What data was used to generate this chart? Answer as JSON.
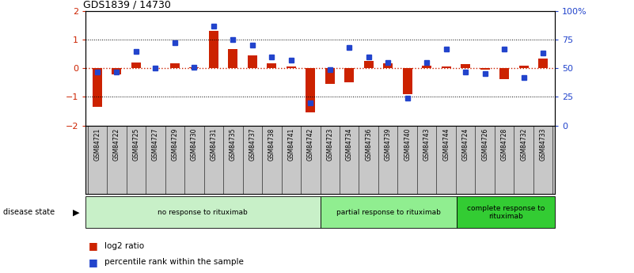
{
  "title": "GDS1839 / 14730",
  "samples": [
    "GSM84721",
    "GSM84722",
    "GSM84725",
    "GSM84727",
    "GSM84729",
    "GSM84730",
    "GSM84731",
    "GSM84735",
    "GSM84737",
    "GSM84738",
    "GSM84741",
    "GSM84742",
    "GSM84723",
    "GSM84734",
    "GSM84736",
    "GSM84739",
    "GSM84740",
    "GSM84743",
    "GSM84744",
    "GSM84724",
    "GSM84726",
    "GSM84728",
    "GSM84732",
    "GSM84733"
  ],
  "log2_ratio": [
    -1.35,
    -0.22,
    0.2,
    0.02,
    0.18,
    0.04,
    1.3,
    0.68,
    0.45,
    0.18,
    0.05,
    -1.55,
    -0.55,
    -0.5,
    0.25,
    0.18,
    -0.9,
    0.1,
    0.06,
    0.15,
    -0.05,
    -0.38,
    0.08,
    0.35
  ],
  "percentile": [
    47,
    47,
    65,
    50,
    72,
    51,
    87,
    75,
    70,
    60,
    57,
    20,
    49,
    68,
    60,
    55,
    24,
    55,
    67,
    47,
    45,
    67,
    42,
    63
  ],
  "groups": [
    {
      "label": "no response to rituximab",
      "start": 0,
      "end": 11,
      "color": "#c8f0c8"
    },
    {
      "label": "partial response to rituximab",
      "start": 12,
      "end": 18,
      "color": "#90ee90"
    },
    {
      "label": "complete response to\nrituximab",
      "start": 19,
      "end": 23,
      "color": "#33cc33"
    }
  ],
  "bar_color_red": "#cc2200",
  "bar_color_blue": "#2244cc",
  "ylim_left": [
    -2,
    2
  ],
  "ylim_right": [
    0,
    100
  ],
  "background_color": "#ffffff",
  "legend_red_label": "log2 ratio",
  "legend_blue_label": "percentile rank within the sample",
  "left_yticks": [
    -2,
    -1,
    0,
    1,
    2
  ],
  "right_yticks": [
    0,
    25,
    50,
    75,
    100
  ],
  "right_yticklabels": [
    "0",
    "25",
    "50",
    "75",
    "100%"
  ]
}
